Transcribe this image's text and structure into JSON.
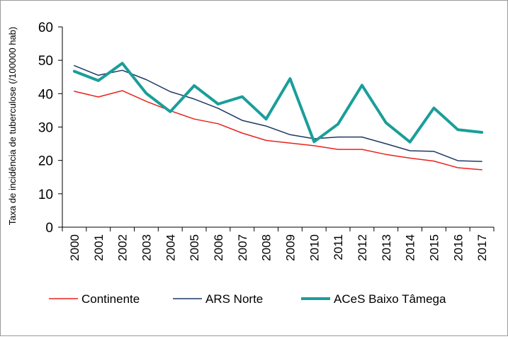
{
  "chart_data": {
    "type": "line",
    "title": "",
    "xlabel": "",
    "ylabel": "Taxa de incidência de tuberculose (/100000 hab)",
    "ylim": [
      0,
      60
    ],
    "yticks": [
      0,
      10,
      20,
      30,
      40,
      50,
      60
    ],
    "grid": false,
    "legend_position": "bottom",
    "categories": [
      "2000",
      "2001",
      "2002",
      "2003",
      "2004",
      "2005",
      "2006",
      "2007",
      "2008",
      "2009",
      "2010",
      "2011",
      "2012",
      "2013",
      "2014",
      "2015",
      "2016",
      "2017"
    ],
    "series": [
      {
        "name": "Continente",
        "color": "#e8231b",
        "line_width": "thin",
        "values": [
          40.7,
          39.0,
          40.9,
          37.7,
          34.9,
          32.4,
          31.0,
          28.2,
          26.0,
          25.2,
          24.4,
          23.3,
          23.3,
          21.8,
          20.7,
          19.8,
          17.8,
          17.2
        ]
      },
      {
        "name": "ARS Norte",
        "color": "#1f3864",
        "line_width": "thin",
        "values": [
          48.4,
          45.5,
          47.0,
          44.2,
          40.6,
          38.4,
          35.6,
          32.0,
          30.3,
          27.7,
          26.5,
          27.0,
          27.0,
          25.0,
          22.9,
          22.7,
          19.9,
          19.7
        ]
      },
      {
        "name": "ACeS Baixo Tâmega",
        "color": "#1a9e9a",
        "line_width": "thick",
        "values": [
          46.7,
          43.9,
          49.1,
          40.1,
          34.6,
          42.4,
          36.9,
          39.1,
          32.4,
          44.5,
          25.6,
          30.9,
          42.5,
          31.3,
          25.5,
          35.7,
          29.2,
          28.4
        ]
      }
    ]
  }
}
